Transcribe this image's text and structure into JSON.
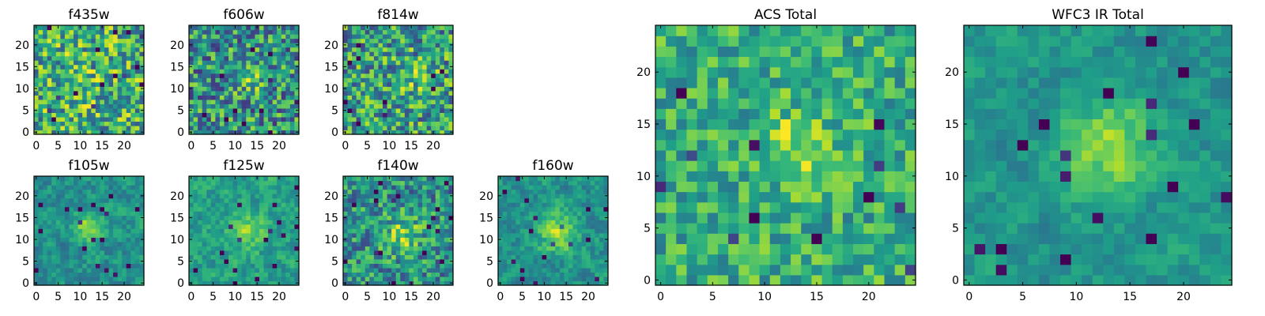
{
  "chart_data": [
    {
      "type": "heatmap",
      "title": "f435w",
      "grid": "25x25",
      "x_ticks": [
        "0",
        "5",
        "10",
        "15",
        "20"
      ],
      "y_ticks": [
        "0",
        "5",
        "10",
        "15",
        "20"
      ],
      "colormap": "viridis",
      "peak": [
        11,
        12
      ],
      "peak_width": 5,
      "peak_strength": 0.06,
      "noise": 0.7,
      "grain": 1,
      "base": 0.62
    },
    {
      "type": "heatmap",
      "title": "f606w",
      "grid": "25x25",
      "x_ticks": [
        "0",
        "5",
        "10",
        "15",
        "20"
      ],
      "y_ticks": [
        "0",
        "5",
        "10",
        "15",
        "20"
      ],
      "colormap": "viridis",
      "peak": [
        13,
        13
      ],
      "peak_width": 2.5,
      "peak_strength": 0.3,
      "noise": 0.7,
      "grain": 1,
      "base": 0.5
    },
    {
      "type": "heatmap",
      "title": "f814w",
      "grid": "25x25",
      "x_ticks": [
        "0",
        "5",
        "10",
        "15",
        "20"
      ],
      "y_ticks": [
        "0",
        "5",
        "10",
        "15",
        "20"
      ],
      "colormap": "viridis",
      "peak": [
        16,
        14
      ],
      "peak_width": 3,
      "peak_strength": 0.2,
      "noise": 0.7,
      "grain": 1,
      "base": 0.55
    },
    {
      "type": "heatmap",
      "title": "f105w",
      "grid": "25x25",
      "x_ticks": [
        "0",
        "5",
        "10",
        "15",
        "20"
      ],
      "y_ticks": [
        "0",
        "5",
        "10",
        "15",
        "20"
      ],
      "colormap": "viridis",
      "peak": [
        12,
        13
      ],
      "peak_width": 2.5,
      "peak_strength": 0.35,
      "noise": 0.45,
      "grain": 2,
      "base": 0.5
    },
    {
      "type": "heatmap",
      "title": "f125w",
      "grid": "25x25",
      "x_ticks": [
        "0",
        "5",
        "10",
        "15",
        "20"
      ],
      "y_ticks": [
        "0",
        "5",
        "10",
        "15",
        "20"
      ],
      "colormap": "viridis",
      "peak": [
        13,
        12
      ],
      "peak_width": 3,
      "peak_strength": 0.25,
      "noise": 0.45,
      "grain": 2,
      "base": 0.55
    },
    {
      "type": "heatmap",
      "title": "f140w",
      "grid": "25x25",
      "x_ticks": [
        "0",
        "5",
        "10",
        "15",
        "20"
      ],
      "y_ticks": [
        "0",
        "5",
        "10",
        "15",
        "20"
      ],
      "colormap": "viridis",
      "peak": [
        13,
        11
      ],
      "peak_width": 3,
      "peak_strength": 0.3,
      "noise": 0.55,
      "grain": 1,
      "base": 0.5
    },
    {
      "type": "heatmap",
      "title": "f160w",
      "grid": "25x25",
      "x_ticks": [
        "0",
        "5",
        "10",
        "15",
        "20"
      ],
      "y_ticks": [
        "0",
        "5",
        "10",
        "15",
        "20"
      ],
      "colormap": "viridis",
      "peak": [
        13,
        12
      ],
      "peak_width": 3,
      "peak_strength": 0.38,
      "noise": 0.45,
      "grain": 2,
      "base": 0.5
    },
    {
      "type": "heatmap",
      "title": "ACS Total",
      "grid": "25x25",
      "x_ticks": [
        "0",
        "5",
        "10",
        "15",
        "20"
      ],
      "y_ticks": [
        "0",
        "5",
        "10",
        "15",
        "20"
      ],
      "colormap": "viridis",
      "peak": [
        13,
        13
      ],
      "peak_width": 2.5,
      "peak_strength": 0.22,
      "noise": 0.45,
      "grain": 1,
      "base": 0.62
    },
    {
      "type": "heatmap",
      "title": "WFC3 IR Total",
      "grid": "25x25",
      "x_ticks": [
        "0",
        "5",
        "10",
        "15",
        "20"
      ],
      "y_ticks": [
        "0",
        "5",
        "10",
        "15",
        "20"
      ],
      "colormap": "viridis",
      "peak": [
        13,
        13
      ],
      "peak_width": 3,
      "peak_strength": 0.32,
      "noise": 0.35,
      "grain": 2,
      "base": 0.52
    }
  ]
}
